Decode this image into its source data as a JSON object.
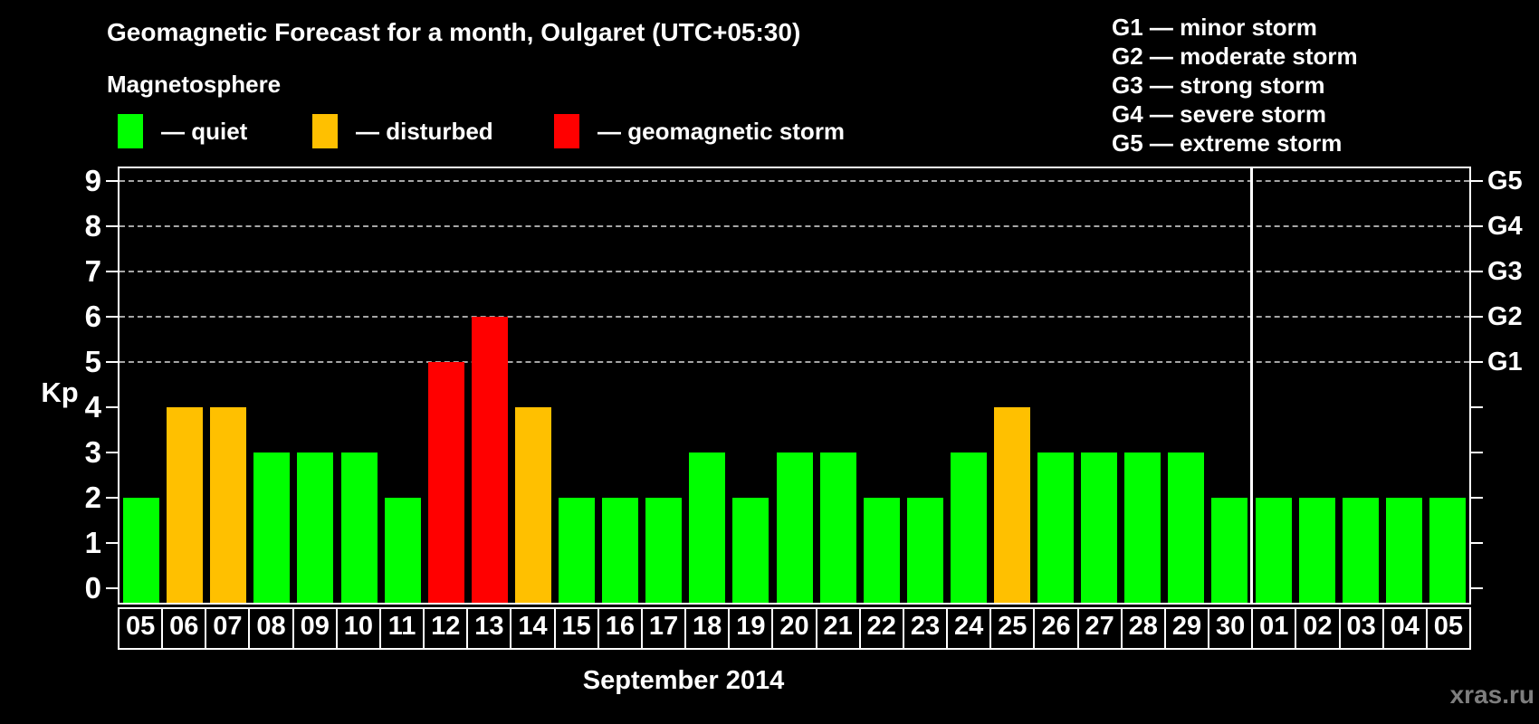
{
  "title": "Geomagnetic Forecast for a month, Oulgaret (UTC+05:30)",
  "subtitle": "Magnetosphere",
  "legend": [
    {
      "key": "quiet",
      "label": "— quiet"
    },
    {
      "key": "disturbed",
      "label": "— disturbed"
    },
    {
      "key": "storm",
      "label": "— geomagnetic storm"
    }
  ],
  "g_scale_legend": [
    "G1 — minor storm",
    "G2 — moderate storm",
    "G3 — strong storm",
    "G4 — severe storm",
    "G5 — extreme storm"
  ],
  "watermark": "xras.ru",
  "colors": {
    "background": "#000000",
    "quiet": "#00FF00",
    "disturbed": "#FFC000",
    "storm": "#FF0000",
    "axis": "#FFFFFF",
    "grid": "#A6A6A6",
    "text": "#FFFFFF",
    "watermark": "#7E7E7E"
  },
  "chart_data": {
    "type": "bar",
    "title": "Geomagnetic Forecast for a month, Oulgaret (UTC+05:30)",
    "xlabel": "September 2014",
    "ylabel": "Kp",
    "ylim": [
      0,
      9
    ],
    "y_ticks": [
      "0",
      "1",
      "2",
      "3",
      "4",
      "5",
      "6",
      "7",
      "8",
      "9"
    ],
    "gridlines_at": [
      5,
      6,
      7,
      8,
      9
    ],
    "grid": "dashed horizontal lines at storm levels only",
    "legend_position": "top",
    "right_axis_labels": [
      {
        "label": "G1",
        "kp": 5
      },
      {
        "label": "G2",
        "kp": 6
      },
      {
        "label": "G3",
        "kp": 7
      },
      {
        "label": "G4",
        "kp": 8
      },
      {
        "label": "G5",
        "kp": 9
      }
    ],
    "categories": [
      "05",
      "06",
      "07",
      "08",
      "09",
      "10",
      "11",
      "12",
      "13",
      "14",
      "15",
      "16",
      "17",
      "18",
      "19",
      "20",
      "21",
      "22",
      "23",
      "24",
      "25",
      "26",
      "27",
      "28",
      "29",
      "30",
      "01",
      "02",
      "03",
      "04",
      "05"
    ],
    "values": [
      2,
      4,
      4,
      3,
      3,
      3,
      2,
      5,
      6,
      4,
      2,
      2,
      2,
      3,
      2,
      3,
      3,
      2,
      2,
      3,
      4,
      3,
      3,
      3,
      3,
      2,
      2,
      2,
      2,
      2,
      2
    ],
    "color_rule": {
      "quiet_max_kp": 3,
      "disturbed_kp": 4,
      "storm_min_kp": 5
    },
    "month_separator_after_index": 25
  }
}
